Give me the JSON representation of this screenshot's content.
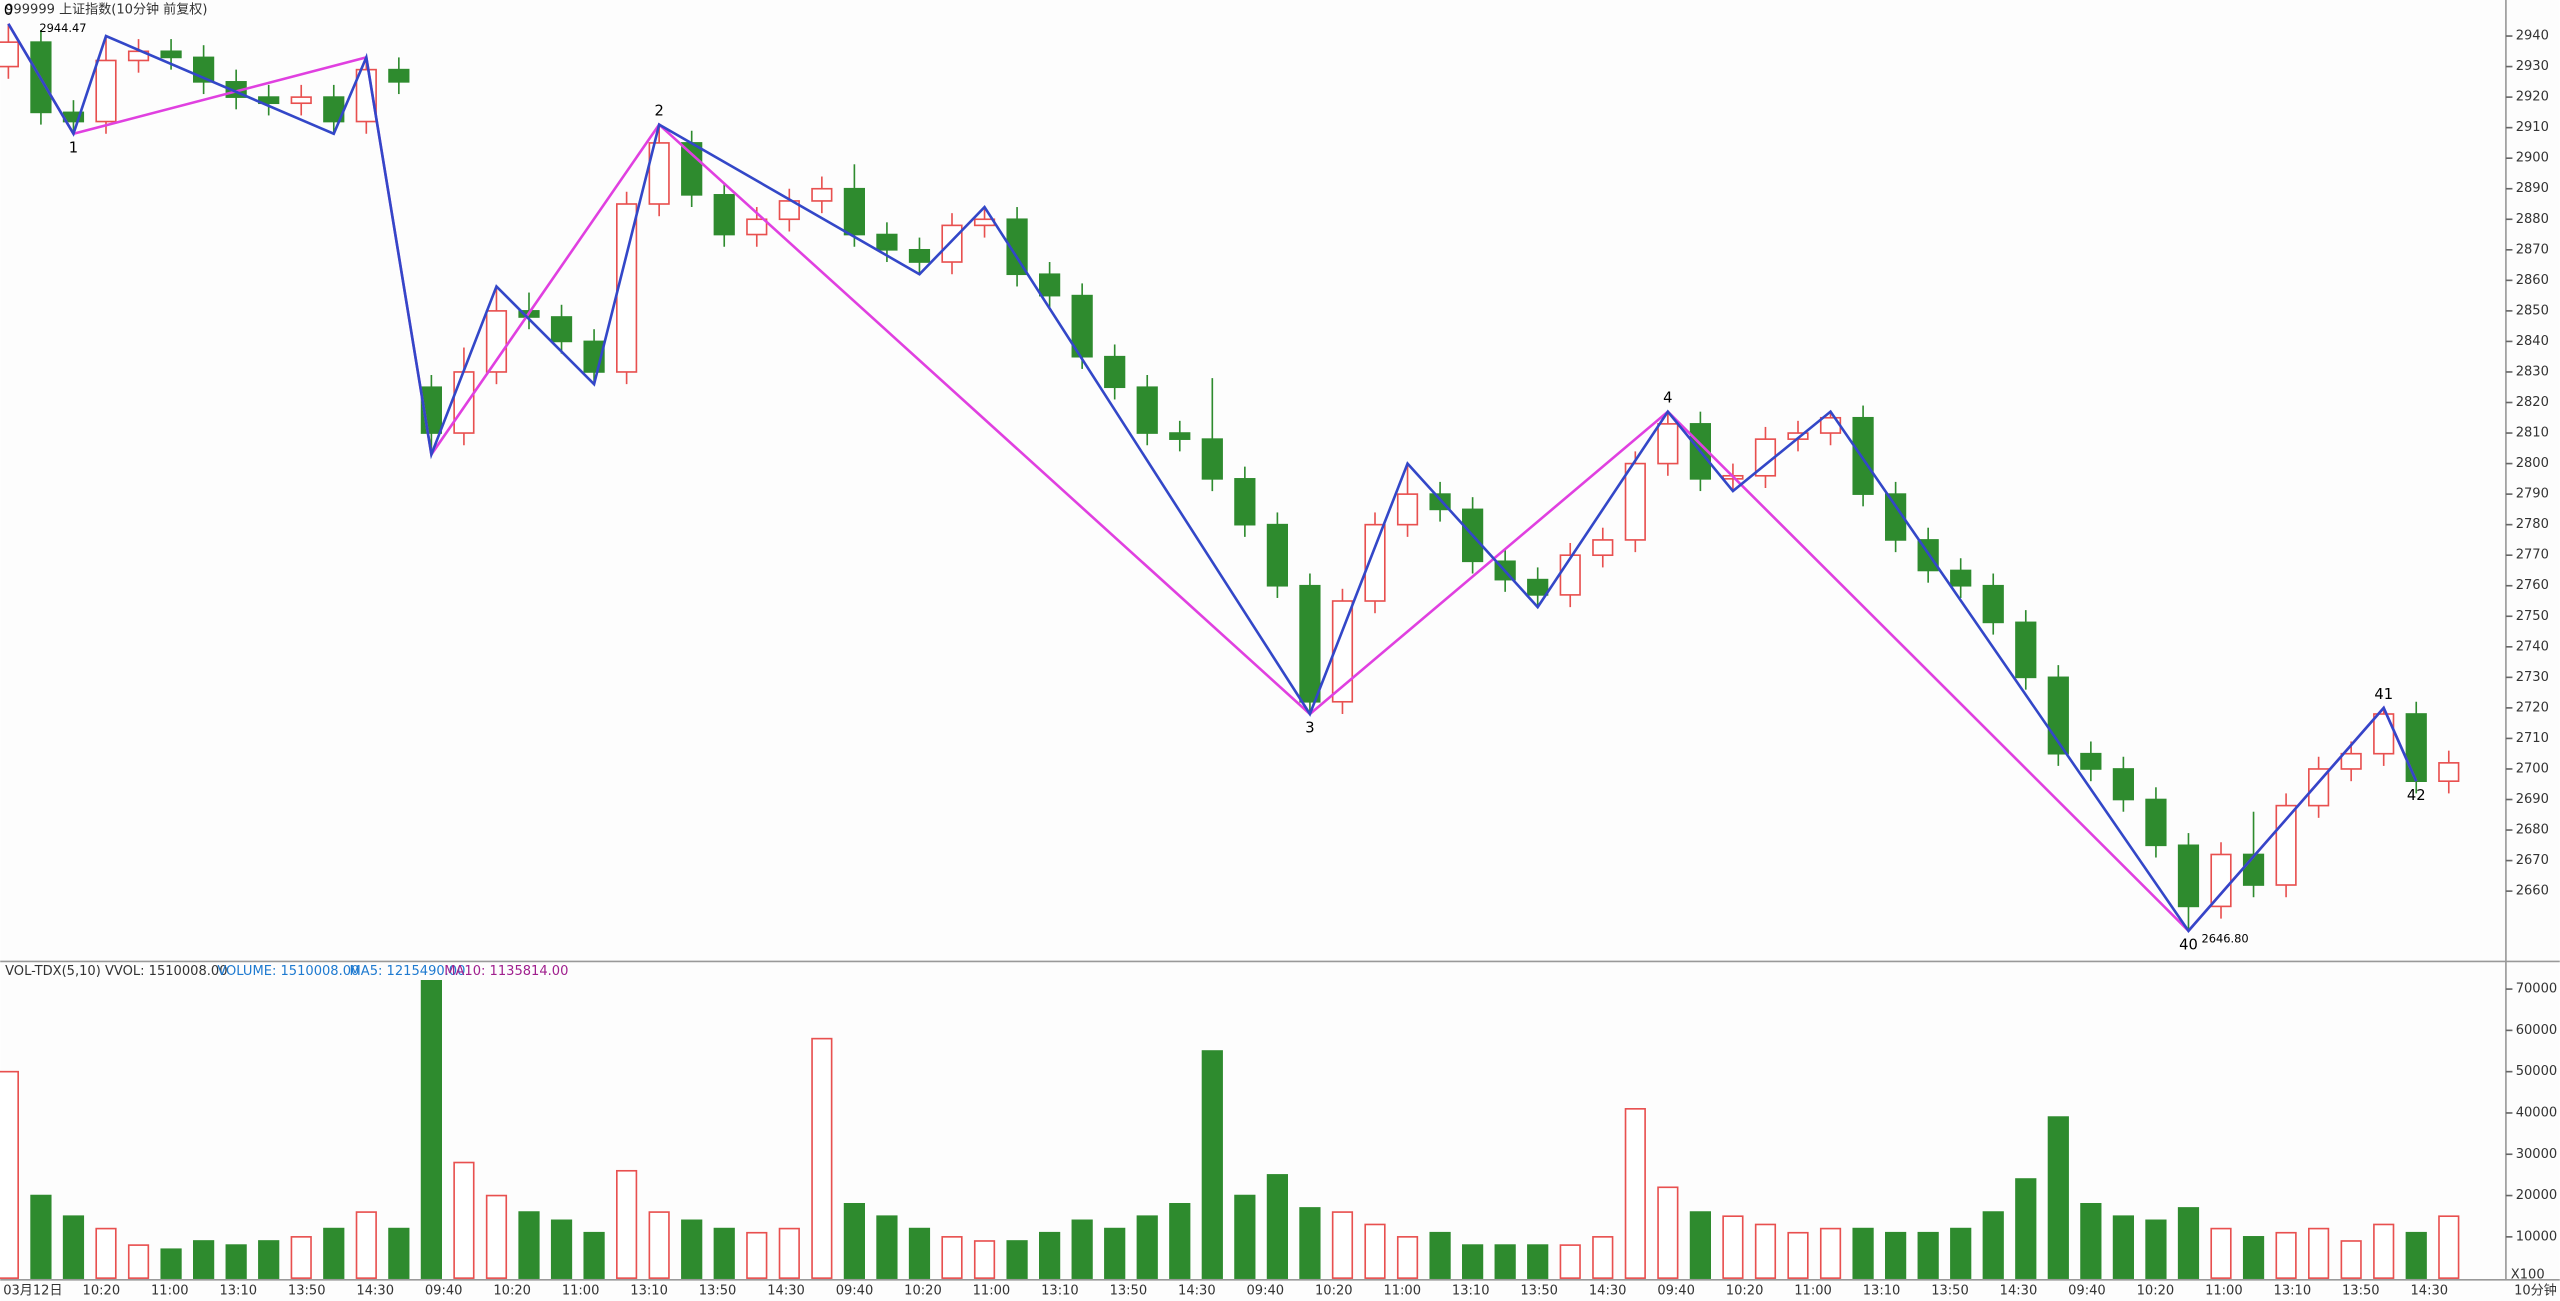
{
  "chart_data": {
    "type": "candlestick",
    "title": "999999 上证指数(10分钟 前复权)",
    "open": [
      2930,
      2938,
      2915,
      2912,
      2932,
      2935,
      2933,
      2925,
      2920,
      2918,
      2920,
      2912,
      2929,
      2825,
      2810,
      2830,
      2850,
      2848,
      2840,
      2830,
      2885,
      2905,
      2888,
      2875,
      2880,
      2886,
      2890,
      2875,
      2870,
      2866,
      2878,
      2880,
      2862,
      2855,
      2835,
      2825,
      2810,
      2808,
      2795,
      2780,
      2760,
      2722,
      2755,
      2780,
      2790,
      2785,
      2768,
      2762,
      2757,
      2770,
      2775,
      2800,
      2813,
      2795,
      2796,
      2808,
      2810,
      2815,
      2790,
      2775,
      2765,
      2760,
      2748,
      2730,
      2705,
      2700,
      2690,
      2675,
      2655,
      2672,
      2662,
      2688,
      2700,
      2705,
      2718,
      2696
    ],
    "high": [
      2944,
      2942,
      2919,
      2940,
      2939,
      2939,
      2937,
      2929,
      2924,
      2924,
      2924,
      2933,
      2933,
      2829,
      2838,
      2858,
      2856,
      2852,
      2844,
      2889,
      2911,
      2909,
      2892,
      2884,
      2890,
      2894,
      2898,
      2879,
      2874,
      2882,
      2884,
      2884,
      2866,
      2859,
      2839,
      2829,
      2814,
      2828,
      2799,
      2784,
      2764,
      2759,
      2784,
      2800,
      2794,
      2789,
      2772,
      2766,
      2774,
      2779,
      2804,
      2817,
      2817,
      2800,
      2812,
      2814,
      2817,
      2819,
      2794,
      2779,
      2769,
      2764,
      2752,
      2734,
      2709,
      2704,
      2694,
      2679,
      2676,
      2686,
      2692,
      2704,
      2709,
      2720,
      2722,
      2706
    ],
    "low": [
      2926,
      2911,
      2908,
      2908,
      2928,
      2929,
      2921,
      2916,
      2914,
      2914,
      2908,
      2908,
      2921,
      2803,
      2806,
      2826,
      2844,
      2836,
      2826,
      2826,
      2881,
      2884,
      2871,
      2871,
      2876,
      2882,
      2871,
      2866,
      2862,
      2862,
      2874,
      2858,
      2851,
      2831,
      2821,
      2806,
      2804,
      2791,
      2776,
      2756,
      2718,
      2718,
      2751,
      2776,
      2781,
      2764,
      2758,
      2753,
      2753,
      2766,
      2771,
      2796,
      2791,
      2791,
      2792,
      2804,
      2806,
      2786,
      2771,
      2761,
      2756,
      2744,
      2726,
      2701,
      2696,
      2686,
      2671,
      2647,
      2651,
      2658,
      2658,
      2684,
      2696,
      2701,
      2692,
      2692
    ],
    "close": [
      2938,
      2915,
      2912,
      2932,
      2935,
      2933,
      2925,
      2920,
      2918,
      2920,
      2912,
      2929,
      2925,
      2810,
      2830,
      2850,
      2848,
      2840,
      2830,
      2885,
      2905,
      2888,
      2875,
      2880,
      2886,
      2890,
      2875,
      2870,
      2866,
      2878,
      2880,
      2862,
      2855,
      2835,
      2825,
      2810,
      2808,
      2795,
      2780,
      2760,
      2722,
      2755,
      2780,
      2790,
      2785,
      2768,
      2762,
      2757,
      2770,
      2775,
      2800,
      2813,
      2795,
      2796,
      2808,
      2810,
      2815,
      2790,
      2775,
      2765,
      2760,
      2748,
      2730,
      2705,
      2700,
      2690,
      2675,
      2655,
      2672,
      2662,
      2688,
      2700,
      2705,
      2718,
      2696,
      2702
    ],
    "volume": [
      50000,
      20000,
      15000,
      12000,
      8000,
      7000,
      9000,
      8000,
      9000,
      10000,
      12000,
      16000,
      12000,
      72000,
      28000,
      20000,
      16000,
      14000,
      11000,
      26000,
      16000,
      14000,
      12000,
      11000,
      12000,
      58000,
      18000,
      15000,
      12000,
      10000,
      9000,
      9000,
      11000,
      14000,
      12000,
      15000,
      18000,
      55000,
      20000,
      25000,
      17000,
      16000,
      13000,
      10000,
      11000,
      8000,
      8000,
      8000,
      8000,
      10000,
      41000,
      22000,
      16000,
      15000,
      13000,
      11000,
      12000,
      12000,
      11000,
      11000,
      12000,
      16000,
      24000,
      39000,
      18000,
      15000,
      14000,
      17000,
      12000,
      10000,
      11000,
      12000,
      9000,
      13000,
      11000,
      15000
    ],
    "up_color": "#e8504f",
    "down_color": "#2e8b2e",
    "ylim": [
      2637.5,
      2951.8
    ],
    "yticks": [
      2660,
      2670,
      2680,
      2690,
      2700,
      2710,
      2720,
      2730,
      2740,
      2750,
      2760,
      2770,
      2780,
      2790,
      2800,
      2810,
      2820,
      2830,
      2840,
      2850,
      2860,
      2870,
      2880,
      2890,
      2900,
      2910,
      2920,
      2930,
      2940
    ],
    "vol_ylim": [
      0,
      75500
    ],
    "vol_yticks": [
      10000,
      20000,
      30000,
      40000,
      50000,
      60000,
      70000
    ],
    "swings": {
      "color": "#3347c8",
      "x": [
        0,
        2,
        3,
        10,
        11,
        13,
        15,
        18,
        20,
        28,
        30,
        40,
        43,
        47,
        51,
        53,
        56,
        67,
        73,
        74
      ],
      "values": [
        2944,
        2908,
        2940,
        2908,
        2933,
        2803,
        2858,
        2826,
        2911,
        2862,
        2884,
        2718,
        2800,
        2753,
        2817,
        2791,
        2817,
        2647,
        2720,
        2696
      ]
    },
    "pivots": {
      "color": "#e040e0",
      "x": [
        0,
        2,
        11,
        13,
        20,
        40,
        51,
        67,
        73,
        74
      ],
      "values": [
        2944,
        2908,
        2933,
        2803,
        2911,
        2718,
        2817,
        2647,
        2720,
        2696
      ],
      "labels": [
        "0",
        "1",
        null,
        null,
        "2",
        "3",
        "4",
        "40",
        "41",
        "42"
      ]
    },
    "annotations": [
      "2944.47",
      "2646.80"
    ],
    "vol_title": "VOL-TDX(5,10) VVOL: 1510008.00",
    "vol_volume": "VOLUME: 1510008.00",
    "vol_ma5": "MA5: 1215490.00",
    "vol_ma10": "MA10: 1135814.00",
    "vol_unit": "X100",
    "period": "10分钟",
    "x_labels": [
      "03月12日",
      "10:20",
      "11:00",
      "13:10",
      "13:50",
      "14:30",
      "09:40",
      "10:20",
      "11:00",
      "13:10",
      "13:50",
      "14:30",
      "09:40",
      "10:20",
      "11:00",
      "13:10",
      "13:50",
      "14:30",
      "09:40",
      "10:20",
      "11:00",
      "13:10",
      "13:50",
      "14:30",
      "09:40",
      "10:20",
      "11:00",
      "13:10",
      "13:50",
      "14:30",
      "09:40",
      "10:20",
      "11:00",
      "13:10",
      "13:50",
      "14:30"
    ]
  }
}
